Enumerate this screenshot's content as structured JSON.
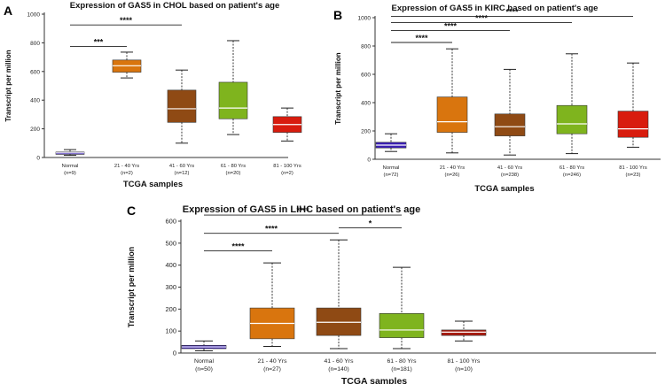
{
  "chart_data": [
    {
      "type": "box",
      "panel_label": "A",
      "title": "Expression of GAS5 in CHOL based on patient's age",
      "xlabel": "TCGA samples",
      "ylabel": "Transcript per million",
      "ylim": [
        0,
        1000
      ],
      "yticks": [
        0,
        200,
        400,
        600,
        800,
        1000
      ],
      "categories": [
        {
          "name": "Normal",
          "n": "(n=9)",
          "color": "#3a1eb4",
          "min": 15,
          "q1": 22,
          "median": 32,
          "q3": 38,
          "max": 55
        },
        {
          "name": "21 - 40 Yrs",
          "n": "(n=2)",
          "color": "#d9750e",
          "min": 555,
          "q1": 595,
          "median": 640,
          "q3": 680,
          "max": 735
        },
        {
          "name": "41 - 60 Yrs",
          "n": "(n=12)",
          "color": "#8f4a14",
          "min": 100,
          "q1": 245,
          "median": 340,
          "q3": 470,
          "max": 610
        },
        {
          "name": "61 - 80 Yrs",
          "n": "(n=20)",
          "color": "#7fb41e",
          "min": 160,
          "q1": 270,
          "median": 345,
          "q3": 525,
          "max": 815
        },
        {
          "name": "81 - 100 Yrs",
          "n": "(n=2)",
          "color": "#d81c0e",
          "min": 115,
          "q1": 175,
          "median": 230,
          "q3": 285,
          "max": 345
        }
      ],
      "significance": [
        {
          "from": 0,
          "to": 1,
          "level": 775,
          "label": "***"
        },
        {
          "from": 0,
          "to": 2,
          "level": 925,
          "label": "****"
        }
      ]
    },
    {
      "type": "box",
      "panel_label": "B",
      "title": "Expression of GAS5 in KIRC based on patient's age",
      "xlabel": "TCGA samples",
      "ylabel": "Transcript per million",
      "ylim": [
        0,
        1000
      ],
      "yticks": [
        0,
        200,
        400,
        600,
        800,
        1000
      ],
      "categories": [
        {
          "name": "Normal",
          "n": "(n=72)",
          "color": "#3a1eb4",
          "min": 55,
          "q1": 80,
          "median": 100,
          "q3": 120,
          "max": 180
        },
        {
          "name": "21 - 40 Yrs",
          "n": "(n=26)",
          "color": "#d9750e",
          "min": 45,
          "q1": 190,
          "median": 265,
          "q3": 440,
          "max": 780
        },
        {
          "name": "41 - 60 Yrs",
          "n": "(n=238)",
          "color": "#8f4a14",
          "min": 30,
          "q1": 165,
          "median": 230,
          "q3": 320,
          "max": 635
        },
        {
          "name": "61 - 80 Yrs",
          "n": "(n=246)",
          "color": "#7fb41e",
          "min": 40,
          "q1": 180,
          "median": 250,
          "q3": 380,
          "max": 745
        },
        {
          "name": "81 - 100 Yrs",
          "n": "(n=23)",
          "color": "#d81c0e",
          "min": 85,
          "q1": 155,
          "median": 215,
          "q3": 340,
          "max": 680
        }
      ],
      "significance": [
        {
          "from": 0,
          "to": 1,
          "level": 825,
          "label": "****"
        },
        {
          "from": 0,
          "to": 2,
          "level": 910,
          "label": "****"
        },
        {
          "from": 0,
          "to": 3,
          "level": 965,
          "label": "****"
        },
        {
          "from": 0,
          "to": 4,
          "level": 1010,
          "label": "****"
        }
      ]
    },
    {
      "type": "box",
      "panel_label": "C",
      "title": "Expression of GAS5 in LIHC based on patient's age",
      "xlabel": "TCGA samples",
      "ylabel": "Transcript per million",
      "ylim": [
        0,
        600
      ],
      "yticks": [
        0,
        100,
        200,
        300,
        400,
        500,
        600
      ],
      "categories": [
        {
          "name": "Normal",
          "n": "(n=50)",
          "color": "#3a1eb4",
          "min": 10,
          "q1": 20,
          "median": 28,
          "q3": 35,
          "max": 55
        },
        {
          "name": "21 - 40 Yrs",
          "n": "(n=27)",
          "color": "#d9750e",
          "min": 30,
          "q1": 65,
          "median": 135,
          "q3": 205,
          "max": 410
        },
        {
          "name": "41 - 60 Yrs",
          "n": "(n=140)",
          "color": "#8f4a14",
          "min": 20,
          "q1": 80,
          "median": 140,
          "q3": 205,
          "max": 515
        },
        {
          "name": "61 - 80 Yrs",
          "n": "(n=181)",
          "color": "#7fb41e",
          "min": 20,
          "q1": 70,
          "median": 105,
          "q3": 180,
          "max": 390
        },
        {
          "name": "81 - 100 Yrs",
          "n": "(n=10)",
          "color": "#a81c10",
          "min": 55,
          "q1": 80,
          "median": 95,
          "q3": 105,
          "max": 145
        }
      ],
      "significance": [
        {
          "from": 0,
          "to": 1,
          "level": 465,
          "label": "****"
        },
        {
          "from": 0,
          "to": 2,
          "level": 545,
          "label": "****"
        },
        {
          "from": 2,
          "to": 3,
          "level": 570,
          "label": "*"
        },
        {
          "from": 0,
          "to": 3,
          "level": 628,
          "label": "****"
        }
      ]
    }
  ]
}
